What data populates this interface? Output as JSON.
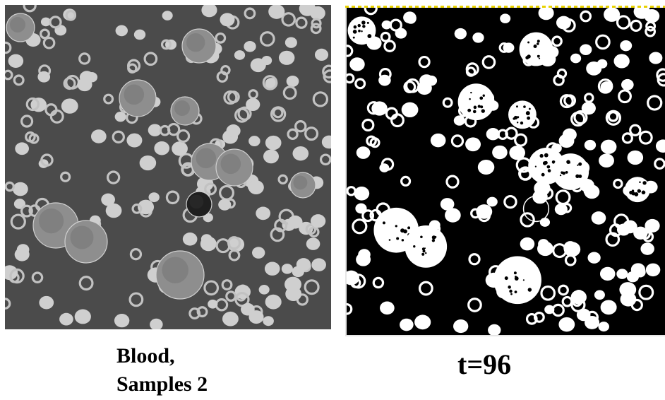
{
  "figure": {
    "left_panel": {
      "caption_line1": "Blood,",
      "caption_line2": "Samples 2",
      "background": "#4b4b4b",
      "cell_fill": "#cfcfcf"
    },
    "right_panel": {
      "caption": "t=96",
      "background": "#000000",
      "cell_fill": "#ffffff"
    }
  }
}
